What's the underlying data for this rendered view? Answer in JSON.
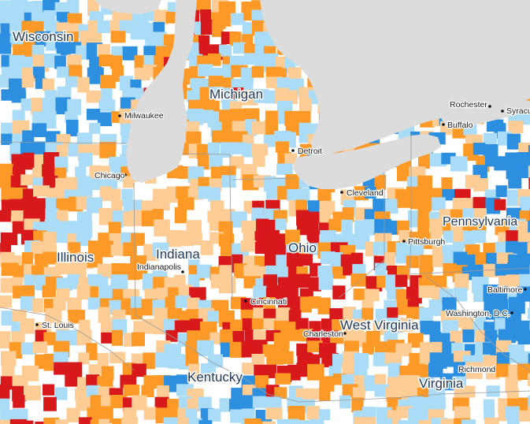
{
  "colors": {
    "water": "#dcdcdc",
    "land_none": "#ffffff",
    "dark_red": "#d7191c",
    "orange": "#fd9a27",
    "light_orange": "#fdcd95",
    "light_blue": "#abdcf7",
    "blue": "#2c8fe0",
    "boundary": "#9a9a9a"
  },
  "states": [
    {
      "name": "Wisconsin"
    },
    {
      "name": "Michigan"
    },
    {
      "name": "Illinois"
    },
    {
      "name": "Indiana"
    },
    {
      "name": "Ohio"
    },
    {
      "name": "Pennsylvania"
    },
    {
      "name": "West Virginia"
    },
    {
      "name": "Kentucky"
    },
    {
      "name": "Virginia"
    }
  ],
  "cities": [
    {
      "name": "Milwaukee"
    },
    {
      "name": "Chicago"
    },
    {
      "name": "Detroit"
    },
    {
      "name": "Cleveland"
    },
    {
      "name": "Rochester"
    },
    {
      "name": "Syracu"
    },
    {
      "name": "Buffalo"
    },
    {
      "name": "Pittsburgh"
    },
    {
      "name": "Indianapolis"
    },
    {
      "name": "Cincinnati"
    },
    {
      "name": "Baltimore"
    },
    {
      "name": "Washington, D.C."
    },
    {
      "name": "St. Louis"
    },
    {
      "name": "Charleston"
    },
    {
      "name": "Richmond"
    }
  ]
}
